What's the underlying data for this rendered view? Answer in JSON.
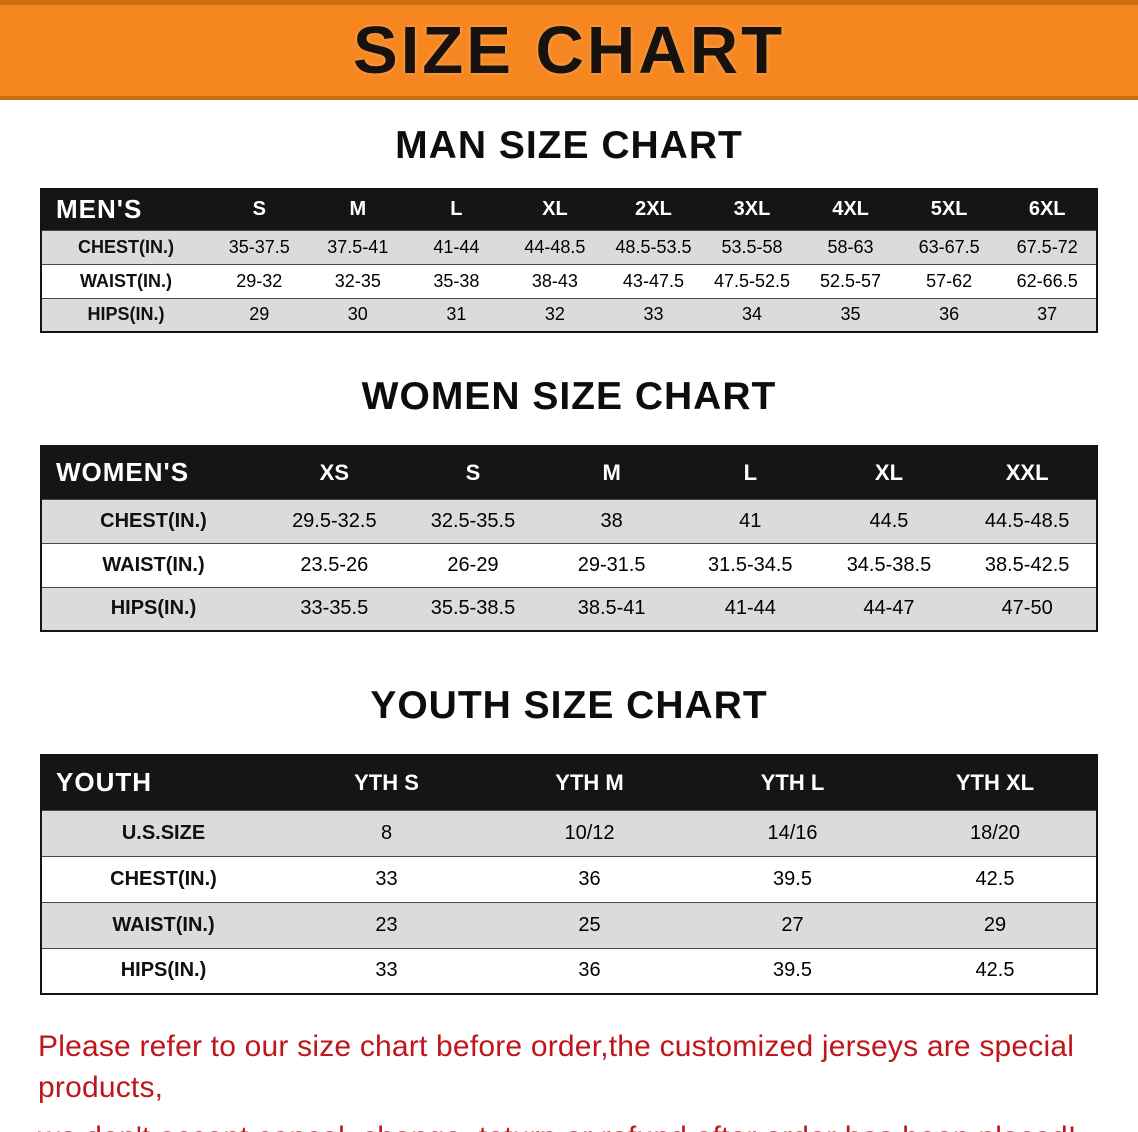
{
  "banner": {
    "title": "SIZE CHART"
  },
  "colors": {
    "banner_bg": "#f6861f",
    "banner_edge": "#cf6d15",
    "table_header_bg": "#151515",
    "row_alt_gray": "#dbdbdb",
    "notice_red": "#bf161c"
  },
  "sections": [
    {
      "id": "men",
      "heading": "MAN SIZE CHART",
      "table": {
        "header": [
          "MEN'S",
          "S",
          "M",
          "L",
          "XL",
          "2XL",
          "3XL",
          "4XL",
          "5XL",
          "6XL"
        ],
        "rows": [
          [
            "CHEST(IN.)",
            "35-37.5",
            "37.5-41",
            "41-44",
            "44-48.5",
            "48.5-53.5",
            "53.5-58",
            "58-63",
            "63-67.5",
            "67.5-72"
          ],
          [
            "WAIST(IN.)",
            "29-32",
            "32-35",
            "35-38",
            "38-43",
            "43-47.5",
            "47.5-52.5",
            "52.5-57",
            "57-62",
            "62-66.5"
          ],
          [
            "HIPS(IN.)",
            "29",
            "30",
            "31",
            "32",
            "33",
            "34",
            "35",
            "36",
            "37"
          ]
        ]
      }
    },
    {
      "id": "women",
      "heading": "WOMEN SIZE CHART",
      "table": {
        "header": [
          "WOMEN'S",
          "XS",
          "S",
          "M",
          "L",
          "XL",
          "XXL"
        ],
        "rows": [
          [
            "CHEST(IN.)",
            "29.5-32.5",
            "32.5-35.5",
            "38",
            "41",
            "44.5",
            "44.5-48.5"
          ],
          [
            "WAIST(IN.)",
            "23.5-26",
            "26-29",
            "29-31.5",
            "31.5-34.5",
            "34.5-38.5",
            "38.5-42.5"
          ],
          [
            "HIPS(IN.)",
            "33-35.5",
            "35.5-38.5",
            "38.5-41",
            "41-44",
            "44-47",
            "47-50"
          ]
        ]
      }
    },
    {
      "id": "youth",
      "heading": "YOUTH SIZE CHART",
      "table": {
        "header": [
          "YOUTH",
          "YTH S",
          "YTH M",
          "YTH L",
          "YTH XL"
        ],
        "rows": [
          [
            "U.S.SIZE",
            "8",
            "10/12",
            "14/16",
            "18/20"
          ],
          [
            "CHEST(IN.)",
            "33",
            "36",
            "39.5",
            "42.5"
          ],
          [
            "WAIST(IN.)",
            "23",
            "25",
            "27",
            "29"
          ],
          [
            "HIPS(IN.)",
            "33",
            "36",
            "39.5",
            "42.5"
          ]
        ]
      }
    }
  ],
  "footer": {
    "line1": "Please refer to our size chart before order,the customized jerseys are special products,",
    "line2": "we don't accept cancel, change, teturn or refund after order has been placed!"
  }
}
